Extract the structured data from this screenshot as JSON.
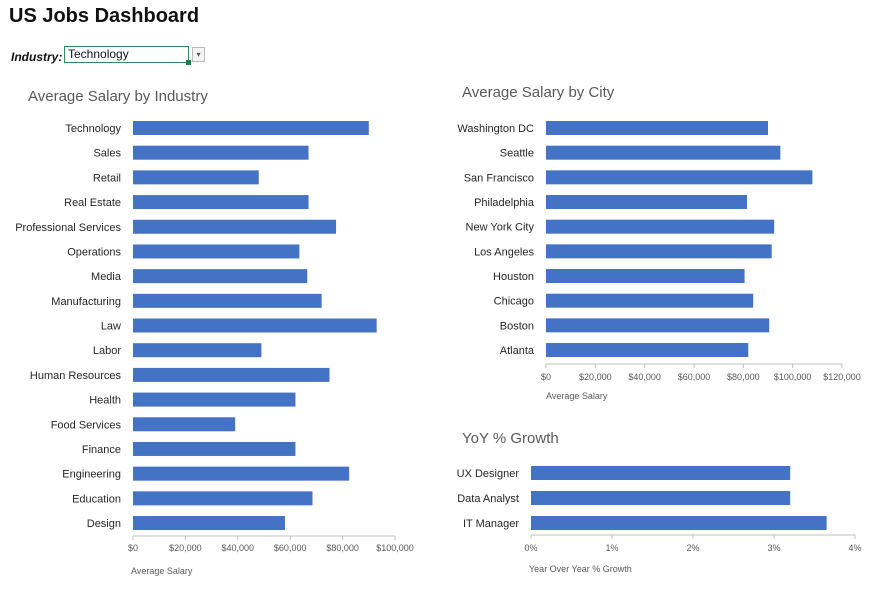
{
  "dashboard": {
    "title": "US Jobs Dashboard",
    "filter_label": "Industry:",
    "filter_value": "Technology",
    "dropdown_glyph": "▾"
  },
  "colors": {
    "bar": "#4472c4",
    "grid": "#d9d9d9",
    "axis": "#bfbfbf"
  },
  "chart_data": [
    {
      "id": "industry",
      "type": "bar",
      "orientation": "horizontal",
      "title": "Average Salary by Industry",
      "xlabel": "Average Salary",
      "ylabel": "",
      "categories": [
        "Technology",
        "Sales",
        "Retail",
        "Real Estate",
        "Professional Services",
        "Operations",
        "Media",
        "Manufacturing",
        "Law",
        "Labor",
        "Human Resources",
        "Health",
        "Food Services",
        "Finance",
        "Engineering",
        "Education",
        "Design"
      ],
      "values": [
        90000,
        67000,
        48000,
        67000,
        77500,
        63500,
        66500,
        72000,
        93000,
        49000,
        75000,
        62000,
        39000,
        62000,
        82500,
        68500,
        58000
      ],
      "xlim": [
        0,
        100000
      ],
      "ticks": [
        0,
        20000,
        40000,
        60000,
        80000,
        100000
      ],
      "tick_labels": [
        "$0",
        "$20,000",
        "$40,000",
        "$60,000",
        "$80,000",
        "$100,000"
      ],
      "grid": false
    },
    {
      "id": "city",
      "type": "bar",
      "orientation": "horizontal",
      "title": "Average Salary by City",
      "xlabel": "Average Salary",
      "ylabel": "",
      "categories": [
        "Washington DC",
        "Seattle",
        "San Francisco",
        "Philadelphia",
        "New York City",
        "Los Angeles",
        "Houston",
        "Chicago",
        "Boston",
        "Atlanta"
      ],
      "values": [
        90000,
        95000,
        108000,
        81500,
        92500,
        91500,
        80500,
        84000,
        90500,
        82000
      ],
      "xlim": [
        0,
        120000
      ],
      "ticks": [
        0,
        20000,
        40000,
        60000,
        80000,
        100000,
        120000
      ],
      "tick_labels": [
        "$0",
        "$20,000",
        "$40,000",
        "$60,000",
        "$80,000",
        "$100,000",
        "$120,000"
      ],
      "grid": false
    },
    {
      "id": "growth",
      "type": "bar",
      "orientation": "horizontal",
      "title": "YoY % Growth",
      "xlabel": "Year Over Year % Growth",
      "ylabel": "",
      "categories": [
        "UX Designer",
        "Data Analyst",
        "IT Manager"
      ],
      "values": [
        3.2,
        3.2,
        3.65
      ],
      "xlim": [
        0,
        4
      ],
      "ticks": [
        0,
        1,
        2,
        3,
        4
      ],
      "tick_labels": [
        "0%",
        "1%",
        "2%",
        "3%",
        "4%"
      ],
      "grid": false
    }
  ]
}
